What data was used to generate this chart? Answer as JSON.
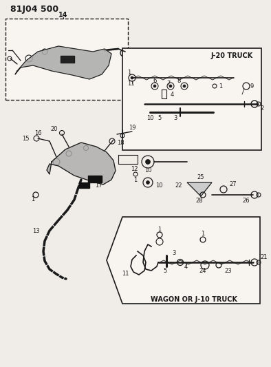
{
  "title": "81J04 500",
  "background_color": "#f0ede8",
  "line_color": "#1a1a1a",
  "text_color": "#1a1a1a",
  "j20_label": "J-20 TRUCK",
  "wagon_label": "WAGON OR J-10 TRUCK",
  "top_box_label": "14",
  "figsize": [
    3.94,
    5.33
  ],
  "dpi": 100
}
